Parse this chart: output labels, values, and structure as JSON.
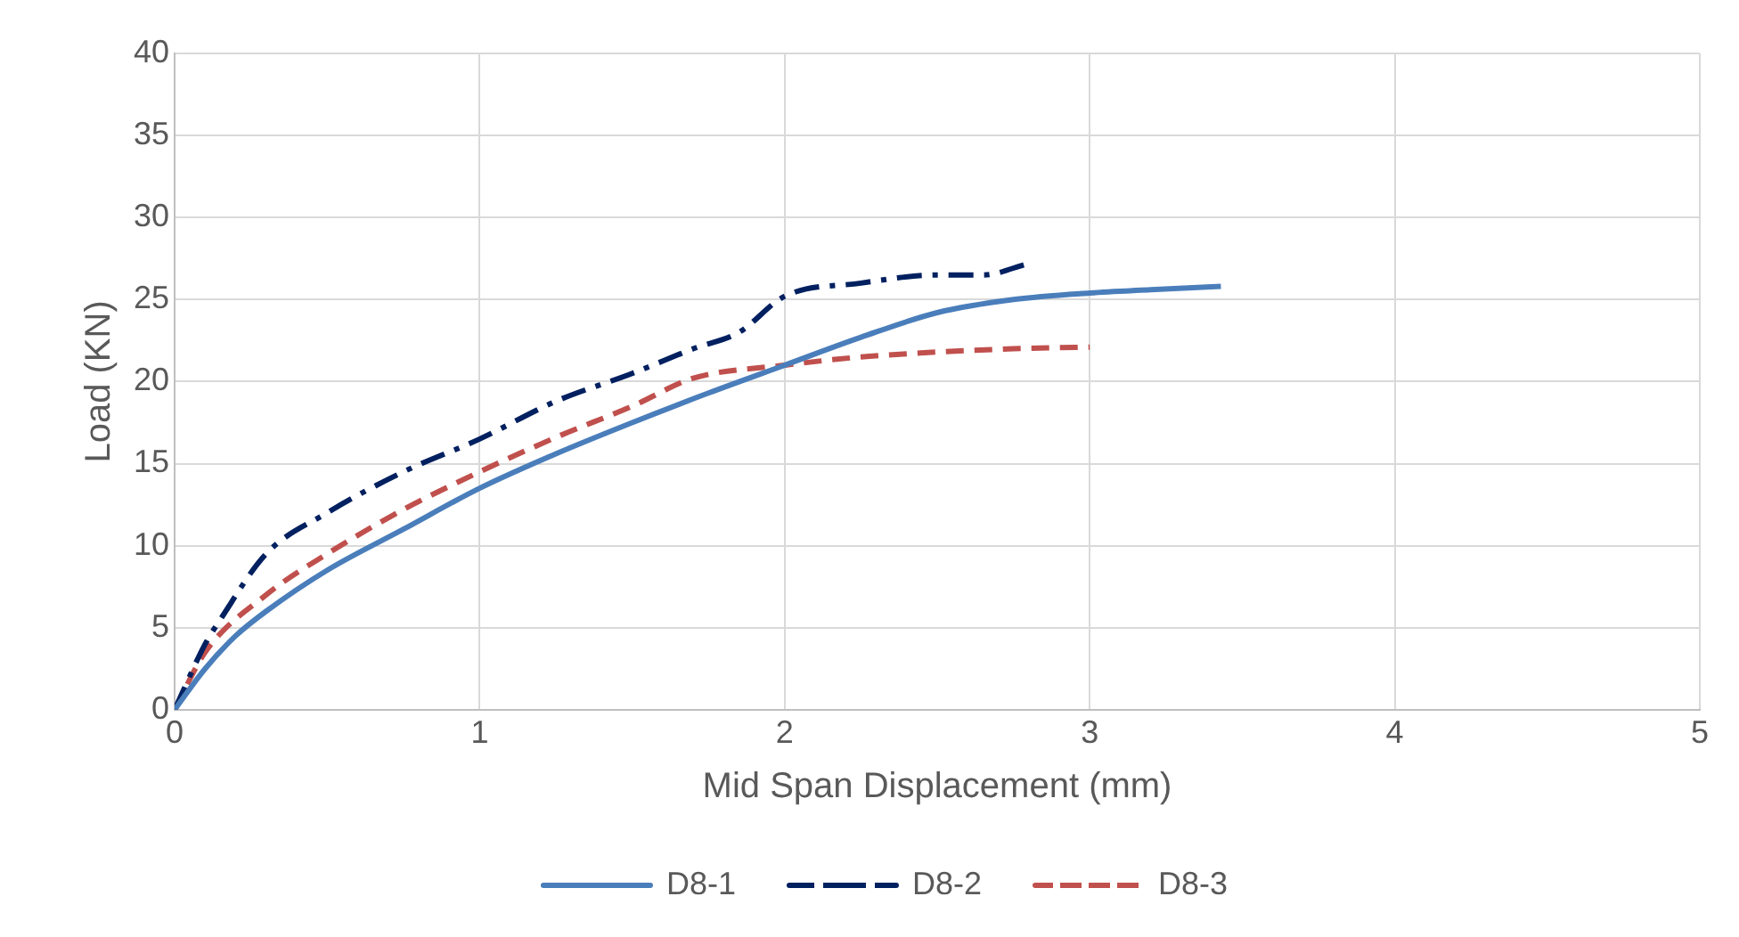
{
  "chart_data": {
    "type": "line",
    "xlabel": "Mid Span Displacement (mm)",
    "ylabel": "Load (KN)",
    "xlim": [
      0,
      5
    ],
    "xticks": [
      0,
      1,
      2,
      3,
      4,
      5
    ],
    "ylim": [
      0,
      40
    ],
    "yticks": [
      0,
      5,
      10,
      15,
      20,
      25,
      30,
      35,
      40
    ],
    "grid": true,
    "legend": "bottom",
    "marker": "none",
    "series": [
      {
        "name": "D8-1",
        "color": "#4a7ebb",
        "line_style": "solid",
        "x": [
          0,
          0.1,
          0.2,
          0.3,
          0.5,
          0.75,
          1,
          1.25,
          1.5,
          1.75,
          2,
          2.25,
          2.5,
          2.75,
          3,
          3.2,
          3.43
        ],
        "values": [
          0,
          2.5,
          4.5,
          6,
          8.5,
          11,
          13.5,
          15.6,
          17.5,
          19.3,
          21,
          22.7,
          24.2,
          25,
          25.4,
          25.6,
          25.8
        ]
      },
      {
        "name": "D8-2",
        "color": "#002060",
        "line_style": "dashdot",
        "x": [
          0,
          0.1,
          0.15,
          0.3,
          0.5,
          0.75,
          1,
          1.25,
          1.5,
          1.7,
          1.85,
          2,
          2.25,
          2.5,
          2.65,
          2.8
        ],
        "values": [
          0,
          4,
          5.5,
          9.5,
          12,
          14.5,
          16.5,
          18.8,
          20.5,
          22,
          23,
          25.2,
          26,
          26.5,
          26.5,
          27.2
        ]
      },
      {
        "name": "D8-3",
        "color": "#c0504d",
        "line_style": "dashed",
        "x": [
          0,
          0.1,
          0.3,
          0.5,
          0.75,
          1,
          1.25,
          1.5,
          1.7,
          2,
          2.25,
          2.5,
          2.75,
          3
        ],
        "values": [
          0,
          3.5,
          7,
          9.5,
          12.2,
          14.5,
          16.6,
          18.5,
          20.2,
          21,
          21.5,
          21.8,
          22,
          22.1
        ]
      }
    ]
  }
}
